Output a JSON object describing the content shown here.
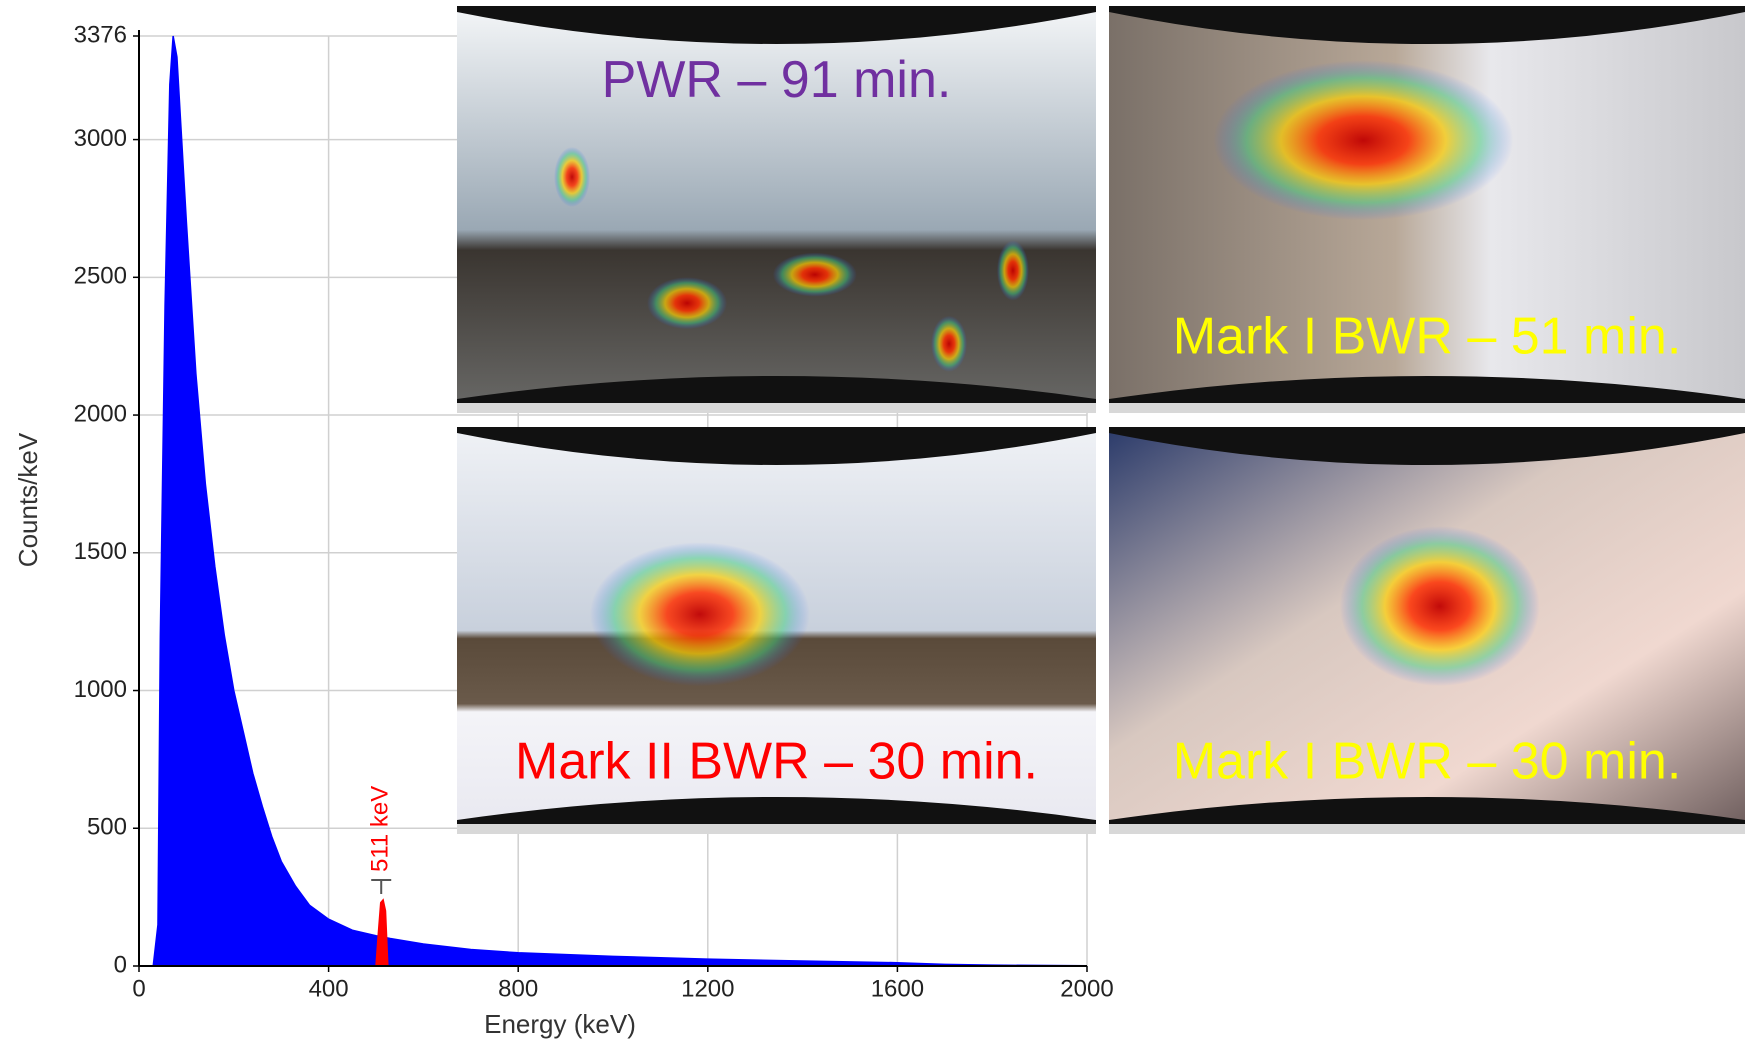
{
  "chart_data": {
    "type": "area",
    "xlabel": "Energy (keV)",
    "ylabel": "Counts/keV",
    "xlim": [
      0,
      2000
    ],
    "ylim": [
      0,
      3376
    ],
    "xticks": [
      0,
      400,
      800,
      1200,
      1600,
      2000
    ],
    "yticks": [
      0,
      500,
      1000,
      1500,
      2000,
      2500,
      3000,
      3376
    ],
    "grid": true,
    "series": [
      {
        "color": "#0000ff",
        "x": [
          30,
          40,
          45,
          55,
          65,
          72,
          80,
          90,
          100,
          120,
          140,
          160,
          180,
          200,
          220,
          240,
          260,
          280,
          300,
          330,
          360,
          400,
          450,
          500,
          530,
          600,
          700,
          800,
          1000,
          1200,
          1400,
          1600,
          1700,
          1800,
          2000
        ],
        "values": [
          0,
          150,
          1200,
          2400,
          3200,
          3376,
          3300,
          3000,
          2700,
          2150,
          1750,
          1450,
          1200,
          1000,
          850,
          700,
          580,
          470,
          380,
          290,
          220,
          170,
          130,
          110,
          100,
          80,
          60,
          48,
          35,
          25,
          18,
          12,
          6,
          3,
          1
        ]
      },
      {
        "color": "#ff0000",
        "x": [
          500,
          505,
          510,
          515,
          520,
          525
        ],
        "values": [
          0,
          120,
          230,
          240,
          200,
          0
        ]
      }
    ],
    "annotations": [
      {
        "text": "511 keV",
        "x": 511,
        "color": "#ff0000"
      }
    ]
  },
  "panels": [
    {
      "caption": "PWR – 91 min.",
      "color": "#7030a0"
    },
    {
      "caption": "Mark I BWR – 51 min.",
      "color": "#ffff00"
    },
    {
      "caption": "Mark II BWR – 30 min.",
      "color": "#ff0000"
    },
    {
      "caption": "Mark I BWR – 30 min.",
      "color": "#ffff00"
    }
  ]
}
